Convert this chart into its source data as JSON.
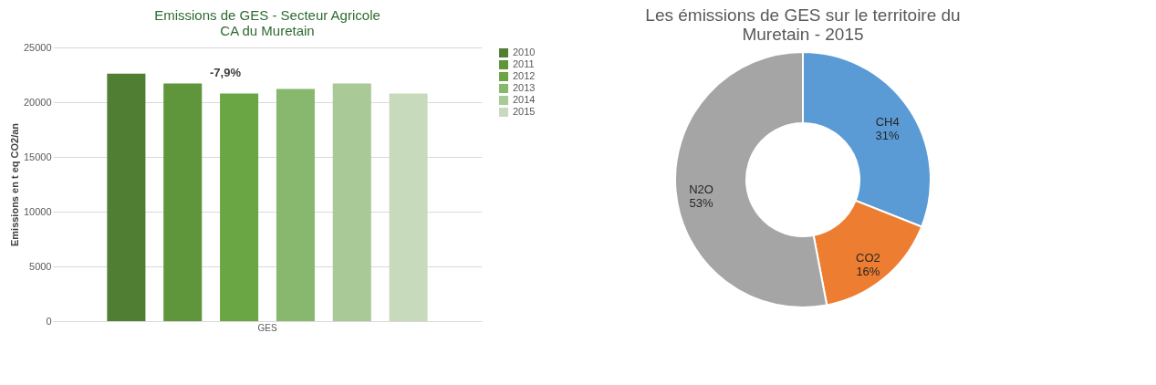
{
  "chart_data": [
    {
      "type": "bar",
      "title": "Emissions de GES - Secteur Agricole\nCA du Muretain",
      "ylabel": "Emissions en t eq CO2/an",
      "categories": [
        "GES"
      ],
      "series": [
        {
          "name": "2010",
          "color": "#507e32",
          "values": [
            22600
          ]
        },
        {
          "name": "2011",
          "color": "#5f963c",
          "values": [
            21700
          ]
        },
        {
          "name": "2012",
          "color": "#6ba644",
          "values": [
            20800
          ]
        },
        {
          "name": "2013",
          "color": "#88b86d",
          "values": [
            21200
          ]
        },
        {
          "name": "2014",
          "color": "#a9ca96",
          "values": [
            21700
          ]
        },
        {
          "name": "2015",
          "color": "#c7dbbc",
          "values": [
            20800
          ]
        }
      ],
      "ylim": [
        0,
        25000
      ],
      "yticks": [
        0,
        5000,
        10000,
        15000,
        20000,
        25000
      ],
      "grid": "y",
      "legend": "right",
      "annotations": [
        "-7,9%"
      ]
    },
    {
      "type": "donut",
      "title": "Les émissions de GES sur le territoire du\nMuretain - 2015",
      "categories": [
        "CH4",
        "CO2",
        "N2O"
      ],
      "values": [
        31,
        16,
        53
      ],
      "colors": [
        "#5b9bd5",
        "#ed7d31",
        "#a5a5a5"
      ],
      "value_labels": [
        "31%",
        "16%",
        "53%"
      ],
      "legend": false
    }
  ]
}
